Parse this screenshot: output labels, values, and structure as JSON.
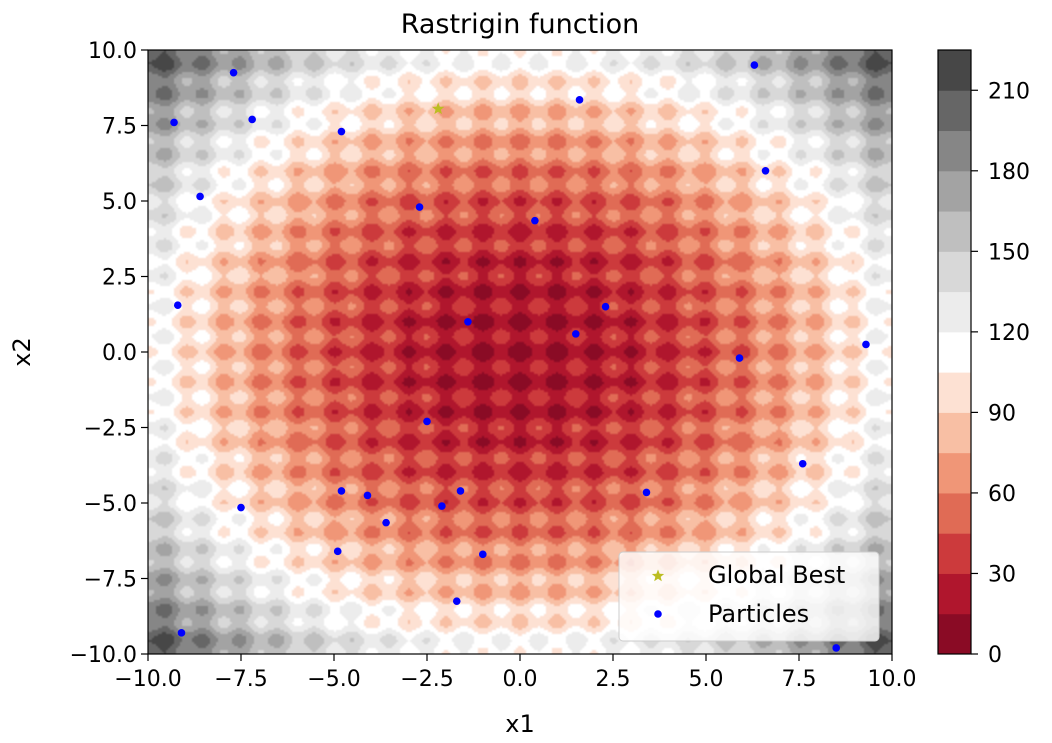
{
  "chart_data": {
    "type": "contour",
    "title": "Rastrigin function",
    "xlabel": "x1",
    "ylabel": "x2",
    "xlim": [
      -10.0,
      10.0
    ],
    "ylim": [
      -10.0,
      10.0
    ],
    "xticks": [
      "−10.0",
      "−7.5",
      "−5.0",
      "−2.5",
      "0.0",
      "2.5",
      "5.0",
      "7.5",
      "10.0"
    ],
    "yticks": [
      "−10.0",
      "−7.5",
      "−5.0",
      "−2.5",
      "0.0",
      "2.5",
      "5.0",
      "7.5",
      "10.0"
    ],
    "colorbar": {
      "range": [
        0,
        225
      ],
      "ticks": [
        "0",
        "30",
        "60",
        "90",
        "120",
        "150",
        "180",
        "210"
      ],
      "tick_values": [
        0,
        30,
        60,
        90,
        120,
        150,
        180,
        210
      ],
      "levels": [
        0,
        15,
        30,
        45,
        60,
        75,
        90,
        105,
        120,
        135,
        150,
        165,
        180,
        195,
        210,
        225
      ],
      "colors": [
        "#8a0b25",
        "#b0162d",
        "#cc3a3c",
        "#e06b55",
        "#f09677",
        "#f8bfa4",
        "#fde1d3",
        "#ffffff",
        "#ececec",
        "#d8d8d8",
        "#bfbfbf",
        "#a3a3a3",
        "#868686",
        "#666666",
        "#474747"
      ]
    },
    "series": [
      {
        "name": "Global Best",
        "marker": "star",
        "color": "#bcbd22",
        "points": [
          [
            -2.2,
            8.05
          ]
        ]
      },
      {
        "name": "Particles",
        "marker": "dot",
        "color": "#0000ff",
        "points": [
          [
            -7.7,
            9.25
          ],
          [
            6.3,
            9.5
          ],
          [
            1.6,
            8.35
          ],
          [
            -7.2,
            7.7
          ],
          [
            -9.3,
            7.6
          ],
          [
            -4.8,
            7.3
          ],
          [
            6.6,
            6.0
          ],
          [
            -8.6,
            5.15
          ],
          [
            -2.7,
            4.8
          ],
          [
            0.4,
            4.35
          ],
          [
            -9.2,
            1.55
          ],
          [
            2.3,
            1.5
          ],
          [
            -1.4,
            1.0
          ],
          [
            1.5,
            0.6
          ],
          [
            5.9,
            -0.2
          ],
          [
            9.3,
            0.25
          ],
          [
            -2.5,
            -2.3
          ],
          [
            7.6,
            -3.7
          ],
          [
            -4.8,
            -4.6
          ],
          [
            -4.1,
            -4.75
          ],
          [
            -1.6,
            -4.6
          ],
          [
            3.4,
            -4.65
          ],
          [
            -7.5,
            -5.15
          ],
          [
            -2.1,
            -5.1
          ],
          [
            -3.6,
            -5.65
          ],
          [
            -4.9,
            -6.6
          ],
          [
            -1.0,
            -6.7
          ],
          [
            -1.7,
            -8.25
          ],
          [
            -9.1,
            -9.3
          ],
          [
            8.5,
            -9.8
          ]
        ]
      }
    ],
    "legend": {
      "position": "lower-right",
      "entries": [
        "Global Best",
        "Particles"
      ]
    }
  }
}
